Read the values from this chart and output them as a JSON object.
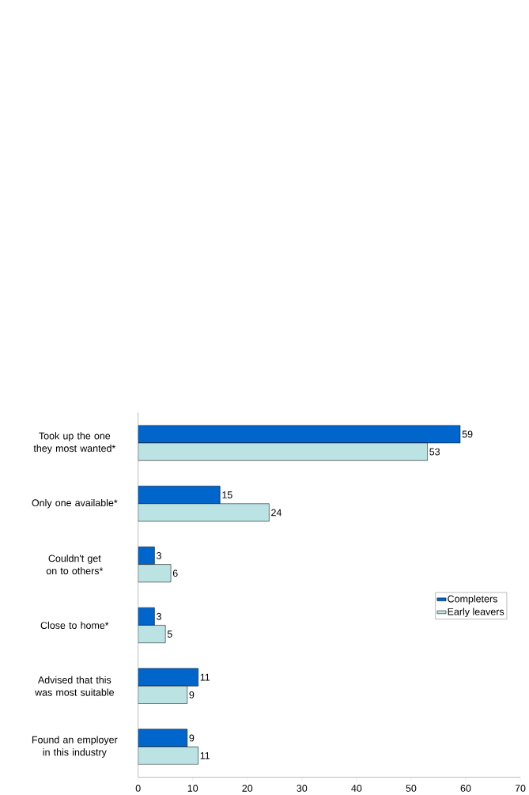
{
  "chart_data": {
    "type": "bar",
    "orientation": "horizontal",
    "categories": [
      "Took up the one they most wanted*",
      "Only one available*",
      "Couldn't get on to others*",
      "Close to home*",
      "Advised that this was most suitable",
      "Found an employer in this industry"
    ],
    "series": [
      {
        "name": "Completers",
        "color": "#0066cc",
        "values": [
          59,
          15,
          3,
          3,
          11,
          9
        ]
      },
      {
        "name": "Early leavers",
        "color": "#bbe3e3",
        "values": [
          53,
          24,
          6,
          5,
          9,
          11
        ]
      }
    ],
    "xlim": [
      0,
      70
    ],
    "xticks": [
      0,
      10,
      20,
      30,
      40,
      50,
      60,
      70
    ],
    "data_labels": true,
    "legend": "right",
    "grid": false
  }
}
